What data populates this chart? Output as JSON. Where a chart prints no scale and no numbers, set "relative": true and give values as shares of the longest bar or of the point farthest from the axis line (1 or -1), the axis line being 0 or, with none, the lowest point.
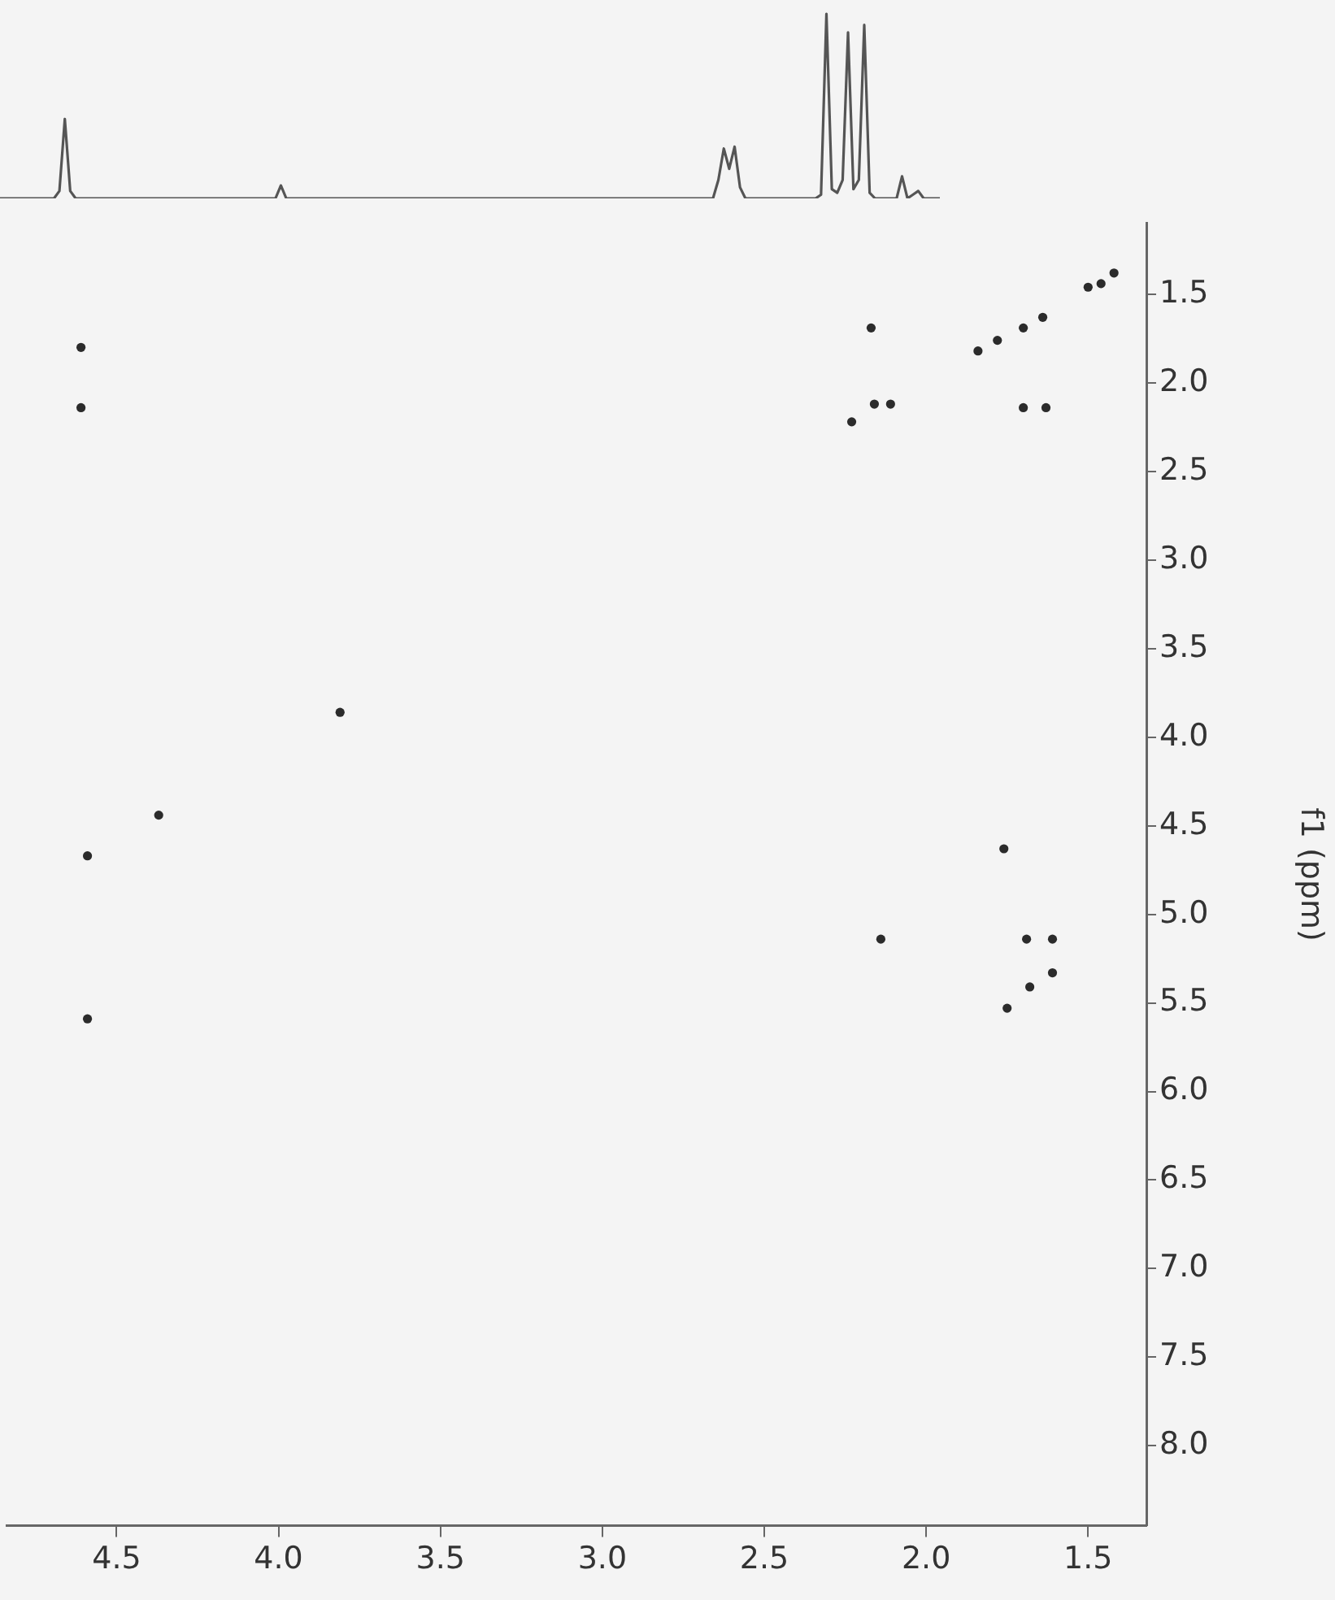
{
  "chart_data": [
    {
      "type": "line",
      "relative": true,
      "tick_labels": false,
      "grid": false,
      "marker": "none",
      "categories": [
        null,
        null,
        null,
        null,
        null,
        null,
        null,
        null,
        null,
        null,
        null,
        null,
        null,
        null,
        null,
        null,
        null,
        null,
        null,
        null,
        null,
        null,
        null,
        null,
        null,
        null,
        null,
        null,
        null,
        null,
        null,
        null,
        null,
        null,
        null,
        null,
        null,
        null,
        null,
        null,
        null,
        null,
        null,
        null,
        null,
        null,
        null,
        null,
        null,
        null,
        null,
        null,
        null,
        null,
        null,
        null,
        null,
        null,
        null,
        null,
        null,
        null,
        null,
        null,
        null,
        null,
        null,
        null,
        null,
        null,
        null,
        null,
        null,
        null,
        null,
        null,
        null,
        null,
        null,
        null,
        null,
        null,
        null,
        null,
        null,
        null,
        null,
        null,
        null,
        null,
        null,
        null,
        null,
        null,
        null,
        null,
        null,
        null,
        null,
        null,
        null,
        null,
        null,
        null,
        null,
        null,
        null,
        null,
        null,
        null,
        null,
        null,
        null,
        null,
        null,
        null,
        null,
        null,
        null,
        null,
        null,
        null,
        null,
        null,
        null,
        null,
        null,
        null,
        null,
        null,
        null,
        null,
        null,
        null,
        null,
        null,
        null,
        null,
        null,
        null,
        null,
        null,
        null,
        null,
        null,
        null,
        null,
        null,
        null,
        null,
        null,
        null,
        null,
        null,
        null,
        null,
        null,
        null,
        null,
        null,
        null,
        null,
        null,
        null,
        null,
        null,
        null,
        null,
        null,
        null,
        null,
        null,
        null,
        null,
        null
      ],
      "series": [
        {
          "color": "#555555",
          "values": [
            0,
            0,
            0,
            0,
            0,
            0,
            0,
            0,
            0,
            0,
            0,
            0.04,
            0.43,
            0.04,
            0,
            0,
            0,
            0,
            0,
            0,
            0,
            0,
            0,
            0,
            0,
            0,
            0,
            0,
            0,
            0,
            0,
            0,
            0,
            0,
            0,
            0,
            0,
            0,
            0,
            0,
            0,
            0,
            0,
            0,
            0,
            0,
            0,
            0,
            0,
            0,
            0,
            0,
            0.07,
            0,
            0,
            0,
            0,
            0,
            0,
            0,
            0,
            0,
            0,
            0,
            0,
            0,
            0,
            0,
            0,
            0,
            0,
            0,
            0,
            0,
            0,
            0,
            0,
            0,
            0,
            0,
            0,
            0,
            0,
            0,
            0,
            0,
            0,
            0,
            0,
            0,
            0,
            0,
            0,
            0,
            0,
            0,
            0,
            0,
            0,
            0,
            0,
            0,
            0,
            0,
            0,
            0,
            0,
            0,
            0,
            0,
            0,
            0,
            0,
            0,
            0,
            0,
            0,
            0,
            0,
            0,
            0,
            0,
            0,
            0,
            0,
            0,
            0,
            0,
            0,
            0,
            0,
            0,
            0,
            0.1,
            0.27,
            0.16,
            0.28,
            0.06,
            0,
            0,
            0,
            0,
            0,
            0,
            0,
            0,
            0,
            0,
            0,
            0,
            0,
            0,
            0.02,
            1,
            0.05,
            0.03,
            0.1,
            0.9,
            0.05,
            0.1,
            0.94,
            0.03,
            0,
            0,
            0,
            0,
            0,
            0.12,
            0,
            0.02,
            0.04,
            0,
            0,
            0,
            0
          ]
        }
      ]
    },
    {
      "type": "scatter",
      "ylabel": "f1 (ppm)",
      "grid": false,
      "marker": "circle",
      "xlim": [
        4.84,
        1.32
      ],
      "xticks": [
        4.5,
        {
          "value": 4,
          "label": "4.0"
        },
        3.5,
        {
          "value": 3,
          "label": "3.0"
        },
        2.5,
        {
          "value": 2,
          "label": "2.0"
        },
        1.5
      ],
      "ylim": [
        8.45,
        1.1
      ],
      "yticks": [
        1.5,
        {
          "value": 2,
          "label": "2.0"
        },
        2.5,
        {
          "value": 3,
          "label": "3.0"
        },
        3.5,
        {
          "value": 4,
          "label": "4.0"
        },
        4.5,
        {
          "value": 5,
          "label": "5.0"
        },
        5.5,
        {
          "value": 6,
          "label": "6.0"
        },
        6.5,
        {
          "value": 7,
          "label": "7.0"
        },
        7.5,
        {
          "value": 8,
          "label": "8.0"
        }
      ],
      "series": [
        {
          "color": "#2b2b2b",
          "x": [
            4.61,
            4.61,
            2.17,
            2.23,
            2.16,
            2.11,
            1.84,
            1.78,
            1.7,
            1.64,
            1.7,
            1.63,
            1.5,
            1.46,
            1.42,
            3.81,
            4.37,
            4.59,
            4.59,
            1.76,
            2.14,
            1.69,
            1.61,
            1.68,
            1.61,
            1.75
          ],
          "values": [
            1.8,
            2.14,
            1.69,
            2.22,
            2.12,
            2.12,
            1.82,
            1.76,
            1.69,
            1.63,
            2.14,
            2.14,
            1.46,
            1.44,
            1.38,
            3.86,
            4.44,
            4.67,
            5.59,
            4.63,
            5.14,
            5.14,
            5.14,
            5.41,
            5.33,
            5.53
          ]
        }
      ]
    }
  ]
}
